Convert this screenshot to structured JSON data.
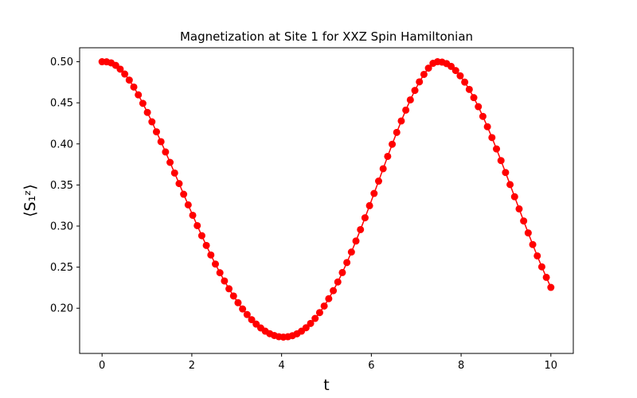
{
  "chart_data": {
    "type": "line",
    "title": "Magnetization at Site 1 for XXZ Spin Hamiltonian",
    "xlabel": "t",
    "ylabel": "⟨S₁ᶻ⟩",
    "xlim": [
      -0.5,
      10.5
    ],
    "ylim": [
      0.145,
      0.517
    ],
    "x_ticks": [
      0,
      2,
      4,
      6,
      8,
      10
    ],
    "x_tick_labels": [
      "0",
      "2",
      "4",
      "6",
      "8",
      "10"
    ],
    "y_ticks": [
      0.2,
      0.25,
      0.3,
      0.35,
      0.4,
      0.45,
      0.5
    ],
    "y_tick_labels": [
      "0.20",
      "0.25",
      "0.30",
      "0.35",
      "0.40",
      "0.45",
      "0.50"
    ],
    "grid": false,
    "color": "#ff0000",
    "marker": "circle",
    "series": [
      {
        "x": [
          0.0,
          0.101,
          0.202,
          0.303,
          0.404,
          0.505,
          0.606,
          0.707,
          0.808,
          0.909,
          1.01,
          1.111,
          1.212,
          1.313,
          1.414,
          1.515,
          1.616,
          1.717,
          1.818,
          1.919,
          2.02,
          2.121,
          2.222,
          2.323,
          2.424,
          2.525,
          2.626,
          2.727,
          2.828,
          2.929,
          3.03,
          3.131,
          3.232,
          3.333,
          3.434,
          3.535,
          3.636,
          3.737,
          3.838,
          3.939,
          4.04,
          4.141,
          4.242,
          4.343,
          4.444,
          4.545,
          4.646,
          4.747,
          4.848,
          4.949,
          5.051,
          5.152,
          5.253,
          5.354,
          5.455,
          5.556,
          5.657,
          5.758,
          5.859,
          5.96,
          6.061,
          6.162,
          6.263,
          6.364,
          6.465,
          6.566,
          6.667,
          6.768,
          6.869,
          6.97,
          7.071,
          7.172,
          7.273,
          7.374,
          7.475,
          7.576,
          7.677,
          7.778,
          7.879,
          7.98,
          8.081,
          8.182,
          8.283,
          8.384,
          8.485,
          8.586,
          8.687,
          8.788,
          8.889,
          8.99,
          9.091,
          9.192,
          9.293,
          9.394,
          9.495,
          9.596,
          9.697,
          9.798,
          9.899,
          10.0
        ],
        "y": [
          0.5,
          0.4999,
          0.4986,
          0.4956,
          0.491,
          0.485,
          0.4777,
          0.4692,
          0.4597,
          0.4493,
          0.4383,
          0.4269,
          0.4147,
          0.4027,
          0.3902,
          0.3775,
          0.3646,
          0.3517,
          0.3387,
          0.3258,
          0.3131,
          0.3005,
          0.2883,
          0.2764,
          0.2648,
          0.2538,
          0.2432,
          0.2332,
          0.2237,
          0.2149,
          0.2067,
          0.1991,
          0.1923,
          0.1861,
          0.1807,
          0.176,
          0.1721,
          0.169,
          0.1668,
          0.1654,
          0.1649,
          0.1653,
          0.1666,
          0.1689,
          0.1721,
          0.1763,
          0.1815,
          0.1876,
          0.1947,
          0.2027,
          0.2116,
          0.2214,
          0.232,
          0.2434,
          0.2556,
          0.2684,
          0.2818,
          0.2957,
          0.3101,
          0.3248,
          0.3397,
          0.3547,
          0.3698,
          0.3848,
          0.3996,
          0.414,
          0.4279,
          0.4411,
          0.4536,
          0.4651,
          0.4755,
          0.4846,
          0.4922,
          0.4981,
          0.5,
          0.4995,
          0.4977,
          0.4943,
          0.4893,
          0.4829,
          0.4752,
          0.4663,
          0.4563,
          0.4453,
          0.4335,
          0.4209,
          0.4077,
          0.3939,
          0.3797,
          0.3652,
          0.3505,
          0.3357,
          0.3209,
          0.3062,
          0.2917,
          0.2775,
          0.2637,
          0.2504,
          0.2376,
          0.2254
        ]
      }
    ]
  }
}
